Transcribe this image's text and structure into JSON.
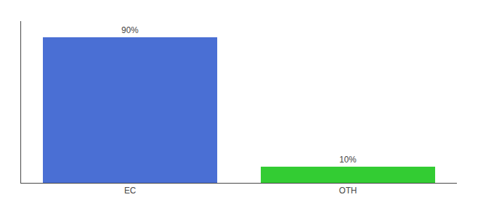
{
  "chart_data": {
    "type": "bar",
    "categories": [
      "EC",
      "OTH"
    ],
    "values": [
      90,
      10
    ],
    "value_labels": [
      "90%",
      "10%"
    ],
    "data_labels": true,
    "colors": [
      "#4a6fd4",
      "#33cc33"
    ],
    "ylim": [
      0,
      100
    ],
    "tick_labels": "x",
    "grid": false
  }
}
